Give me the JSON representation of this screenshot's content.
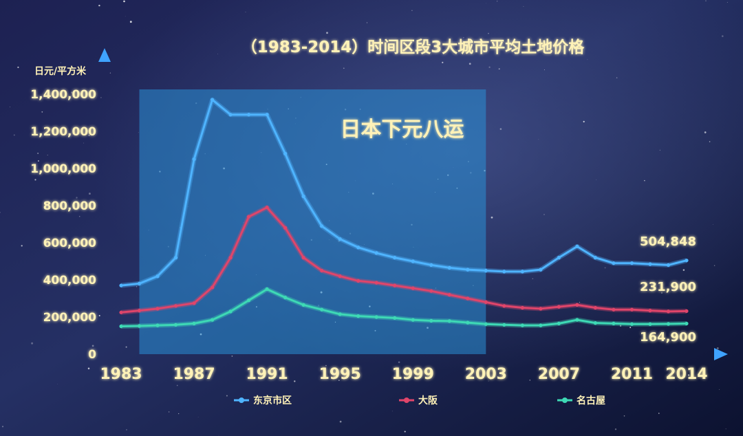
{
  "colors": {
    "background_top": "#1b1f4d",
    "background_bottom": "#0e1434",
    "axis": "#3fa3ff",
    "highlight_band": "#2a8fd6",
    "tokyo": "#4fb4ff",
    "osaka": "#e0456a",
    "nagoya": "#3ed9b5",
    "text_main": "#fff2b8"
  },
  "chart_data": {
    "type": "line",
    "title": "（1983-2014）时间区段3大城市平均土地价格",
    "ylabel": "日元/平方米",
    "xlabel": "",
    "ylim": [
      0,
      1400000
    ],
    "xlim": [
      1983,
      2014
    ],
    "y_ticks": [
      "0",
      "200,000",
      "400,000",
      "600,000",
      "800,000",
      "1,000,000",
      "1,200,000",
      "1,400,000"
    ],
    "y_tick_values": [
      0,
      200000,
      400000,
      600000,
      800000,
      1000000,
      1200000,
      1400000
    ],
    "x_ticks": [
      "1983",
      "1987",
      "1991",
      "1995",
      "1999",
      "2003",
      "2007",
      "2011",
      "2014"
    ],
    "x_tick_values": [
      1983,
      1987,
      1991,
      1995,
      1999,
      2003,
      2007,
      2011,
      2014
    ],
    "highlight": {
      "label": "日本下元八运",
      "from": 1984,
      "to": 2003
    },
    "legend_position": "bottom",
    "x": [
      1983,
      1984,
      1985,
      1986,
      1987,
      1988,
      1989,
      1990,
      1991,
      1992,
      1993,
      1994,
      1995,
      1996,
      1997,
      1998,
      1999,
      2000,
      2001,
      2002,
      2003,
      2004,
      2005,
      2006,
      2007,
      2008,
      2009,
      2010,
      2011,
      2012,
      2013,
      2014
    ],
    "series": [
      {
        "name": "东京市区",
        "color_key": "tokyo",
        "values": [
          370000,
          380000,
          420000,
          520000,
          1050000,
          1370000,
          1290000,
          1290000,
          1290000,
          1080000,
          850000,
          690000,
          620000,
          575000,
          545000,
          520000,
          500000,
          480000,
          465000,
          455000,
          450000,
          445000,
          445000,
          455000,
          520000,
          580000,
          520000,
          490000,
          490000,
          485000,
          480000,
          504848
        ],
        "end_label": "504,848"
      },
      {
        "name": "大阪",
        "color_key": "osaka",
        "values": [
          225000,
          235000,
          245000,
          260000,
          275000,
          360000,
          520000,
          740000,
          790000,
          680000,
          520000,
          450000,
          420000,
          395000,
          385000,
          370000,
          355000,
          340000,
          320000,
          300000,
          280000,
          260000,
          250000,
          245000,
          255000,
          265000,
          250000,
          240000,
          240000,
          235000,
          230000,
          231900
        ],
        "end_label": "231,900"
      },
      {
        "name": "名古屋",
        "color_key": "nagoya",
        "values": [
          150000,
          152000,
          155000,
          158000,
          165000,
          185000,
          230000,
          290000,
          350000,
          305000,
          265000,
          240000,
          215000,
          205000,
          200000,
          195000,
          185000,
          180000,
          178000,
          170000,
          162000,
          158000,
          155000,
          155000,
          165000,
          185000,
          168000,
          165000,
          162000,
          162000,
          163000,
          164900
        ],
        "end_label": "164,900"
      }
    ]
  }
}
